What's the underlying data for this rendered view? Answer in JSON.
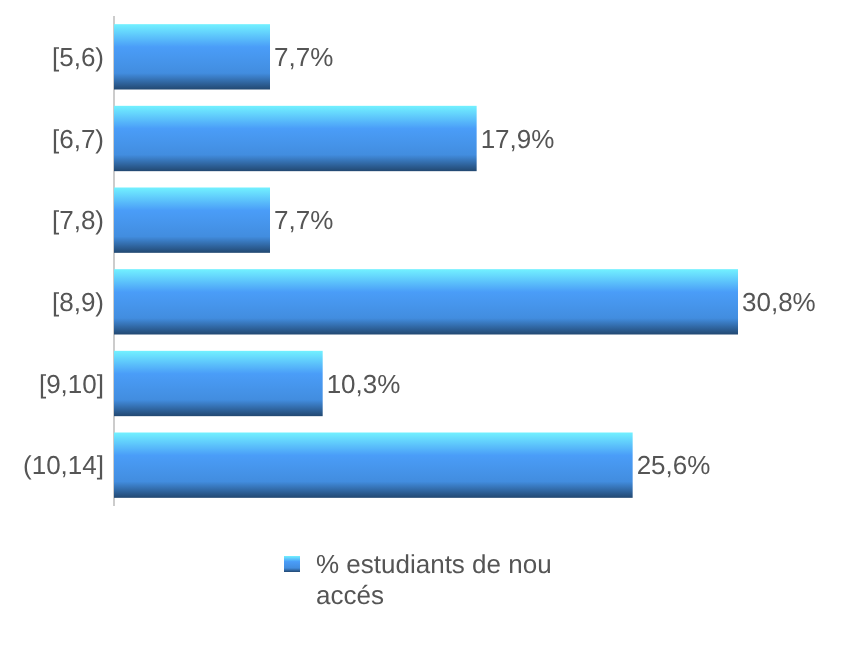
{
  "chart_data": {
    "type": "bar",
    "orientation": "horizontal",
    "categories": [
      "[5,6)",
      "[6,7)",
      "[7,8)",
      "[8,9)",
      "[9,10]",
      "(10,14]"
    ],
    "series": [
      {
        "name": "% estudiants de nou accés",
        "color": "#4a9df8",
        "values": [
          7.7,
          17.9,
          7.7,
          30.8,
          10.3,
          25.6
        ],
        "value_labels": [
          "7,7%",
          "17,9%",
          "7,7%",
          "30,8%",
          "10,3%",
          "25,6%"
        ]
      }
    ],
    "legend": "bottom"
  }
}
